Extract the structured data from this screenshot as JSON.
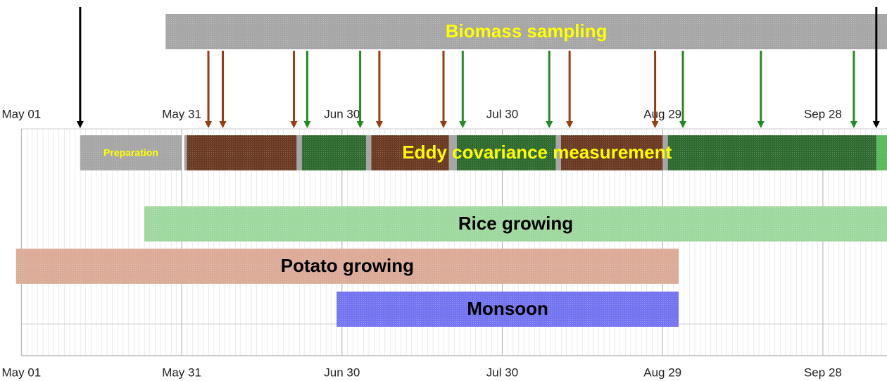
{
  "chart_data": {
    "type": "timeline",
    "xlim": [
      -4,
      162
    ],
    "xticks": [
      {
        "value": 0,
        "label": "May 01"
      },
      {
        "value": 30,
        "label": "May 31"
      },
      {
        "value": 60,
        "label": "Jun 30"
      },
      {
        "value": 90,
        "label": "Jul 30"
      },
      {
        "value": 120,
        "label": "Aug 29"
      },
      {
        "value": 150,
        "label": "Sep 28"
      }
    ],
    "grid": true,
    "tasks": [
      {
        "name": "Biomass sampling",
        "start": 27,
        "end": 162,
        "color": "#a6a6a6",
        "label_color": "#ffff00"
      },
      {
        "name": "Preparation",
        "start": 11,
        "end": 30,
        "color": "#a6a6a6",
        "label_color": "#ffff00"
      },
      {
        "name": "Eddy covariance measurement",
        "label_color": "#ffff00",
        "segments": [
          {
            "start": 31,
            "end": 51.5,
            "color": "#6b3a22"
          },
          {
            "start": 52.5,
            "end": 64.5,
            "color": "#2f6b2f"
          },
          {
            "start": 65.5,
            "end": 80,
            "color": "#6b3a22"
          },
          {
            "start": 81.5,
            "end": 100,
            "color": "#2f6b2f"
          },
          {
            "start": 101,
            "end": 120,
            "color": "#6b3a22"
          },
          {
            "start": 121,
            "end": 160,
            "color": "#2f6b2f"
          },
          {
            "start": 160,
            "end": 162,
            "color": "#5cb85c"
          }
        ]
      },
      {
        "name": "Rice growing",
        "start": 23,
        "end": 162,
        "color": "#9fd89f",
        "label_color": "#000000"
      },
      {
        "name": "Potato growing",
        "start": -1,
        "end": 123,
        "color": "#dcab98",
        "label_color": "#000000"
      },
      {
        "name": "Monsoon",
        "start": 59,
        "end": 123,
        "color": "#7474f0",
        "label_color": "#000000"
      }
    ],
    "events": [
      {
        "color": "#000000",
        "x": [
          11,
          160
        ]
      },
      {
        "color": "#9a3b12",
        "x": [
          35,
          37.7,
          51,
          67,
          79,
          102.6,
          118.6
        ]
      },
      {
        "color": "#238b23",
        "x": [
          53.5,
          63.4,
          82.6,
          98.8,
          123.8,
          138.4,
          155.8
        ]
      }
    ]
  }
}
